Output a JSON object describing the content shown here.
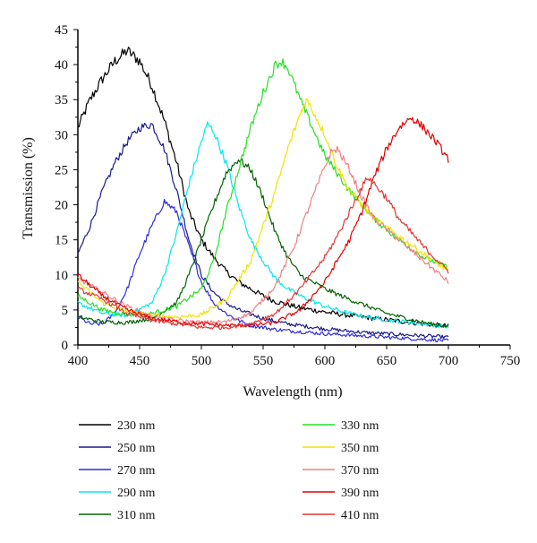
{
  "chart_data": {
    "type": "line",
    "title": "",
    "xlabel": "Wavelength (nm)",
    "ylabel": "Transmission (%)",
    "xlim": [
      400,
      750
    ],
    "ylim": [
      0,
      45
    ],
    "x_ticks": [
      "400",
      "450",
      "500",
      "550",
      "600",
      "650",
      "700",
      "750"
    ],
    "y_ticks": [
      "0",
      "5",
      "10",
      "15",
      "20",
      "25",
      "30",
      "35",
      "40",
      "45"
    ],
    "grid": false,
    "legend_position": "bottom",
    "series": [
      {
        "name": "230 nm",
        "color": "#000000",
        "noise": 0.6,
        "points": [
          [
            400,
            31
          ],
          [
            410,
            35
          ],
          [
            420,
            38
          ],
          [
            430,
            40.5
          ],
          [
            440,
            42
          ],
          [
            450,
            40.5
          ],
          [
            460,
            37
          ],
          [
            470,
            32
          ],
          [
            480,
            26
          ],
          [
            490,
            19
          ],
          [
            500,
            15
          ],
          [
            510,
            12.5
          ],
          [
            520,
            10.5
          ],
          [
            530,
            9
          ],
          [
            540,
            8
          ],
          [
            550,
            7
          ],
          [
            560,
            6.2
          ],
          [
            580,
            5.3
          ],
          [
            600,
            4.7
          ],
          [
            620,
            4.2
          ],
          [
            640,
            3.8
          ],
          [
            660,
            3.4
          ],
          [
            680,
            3.0
          ],
          [
            700,
            2.7
          ]
        ]
      },
      {
        "name": "250 nm",
        "color": "#1a1a8c",
        "noise": 0.5,
        "points": [
          [
            400,
            13
          ],
          [
            410,
            17
          ],
          [
            420,
            22
          ],
          [
            430,
            26
          ],
          [
            440,
            29
          ],
          [
            450,
            31
          ],
          [
            460,
            31.5
          ],
          [
            470,
            28
          ],
          [
            480,
            22
          ],
          [
            490,
            15
          ],
          [
            500,
            10
          ],
          [
            510,
            7.5
          ],
          [
            520,
            6
          ],
          [
            530,
            5
          ],
          [
            540,
            4.4
          ],
          [
            550,
            3.8
          ],
          [
            570,
            3
          ],
          [
            600,
            2.3
          ],
          [
            630,
            1.8
          ],
          [
            660,
            1.5
          ],
          [
            700,
            1.1
          ]
        ]
      },
      {
        "name": "270 nm",
        "color": "#2c2ce0",
        "noise": 0.5,
        "points": [
          [
            400,
            4
          ],
          [
            410,
            3
          ],
          [
            420,
            3
          ],
          [
            430,
            4.5
          ],
          [
            440,
            8
          ],
          [
            450,
            13
          ],
          [
            460,
            17
          ],
          [
            470,
            20.5
          ],
          [
            480,
            19
          ],
          [
            490,
            14
          ],
          [
            500,
            9
          ],
          [
            510,
            6
          ],
          [
            520,
            4.5
          ],
          [
            530,
            3.5
          ],
          [
            540,
            2.8
          ],
          [
            560,
            2.2
          ],
          [
            600,
            1.6
          ],
          [
            650,
            1.1
          ],
          [
            700,
            0.6
          ]
        ]
      },
      {
        "name": "290 nm",
        "color": "#00e8f0",
        "noise": 0.5,
        "points": [
          [
            400,
            6
          ],
          [
            420,
            4.5
          ],
          [
            440,
            4.2
          ],
          [
            460,
            6
          ],
          [
            470,
            10
          ],
          [
            480,
            16
          ],
          [
            490,
            23
          ],
          [
            500,
            29
          ],
          [
            505,
            31.5
          ],
          [
            510,
            30.5
          ],
          [
            520,
            26
          ],
          [
            530,
            20
          ],
          [
            540,
            15
          ],
          [
            550,
            12
          ],
          [
            560,
            9.5
          ],
          [
            570,
            8
          ],
          [
            580,
            7
          ],
          [
            600,
            5.5
          ],
          [
            620,
            4.5
          ],
          [
            640,
            3.8
          ],
          [
            670,
            3.2
          ],
          [
            700,
            2.6
          ]
        ]
      },
      {
        "name": "310 nm",
        "color": "#006400",
        "noise": 0.5,
        "points": [
          [
            400,
            4
          ],
          [
            420,
            3.3
          ],
          [
            440,
            3.2
          ],
          [
            460,
            3.8
          ],
          [
            480,
            6
          ],
          [
            490,
            10
          ],
          [
            500,
            15
          ],
          [
            510,
            20
          ],
          [
            520,
            24.5
          ],
          [
            530,
            26.5
          ],
          [
            540,
            25
          ],
          [
            550,
            21
          ],
          [
            560,
            16
          ],
          [
            570,
            12.5
          ],
          [
            580,
            10
          ],
          [
            600,
            8
          ],
          [
            620,
            6.5
          ],
          [
            650,
            4.5
          ],
          [
            680,
            3.2
          ],
          [
            700,
            2.6
          ]
        ]
      },
      {
        "name": "330 nm",
        "color": "#22e022",
        "noise": 0.5,
        "points": [
          [
            400,
            7
          ],
          [
            420,
            5
          ],
          [
            440,
            4.3
          ],
          [
            460,
            4.5
          ],
          [
            480,
            5.5
          ],
          [
            500,
            8
          ],
          [
            510,
            12
          ],
          [
            520,
            19
          ],
          [
            530,
            25
          ],
          [
            540,
            31
          ],
          [
            550,
            36
          ],
          [
            560,
            40
          ],
          [
            565,
            40.5
          ],
          [
            570,
            39.5
          ],
          [
            580,
            35
          ],
          [
            590,
            31
          ],
          [
            600,
            27
          ],
          [
            620,
            22
          ],
          [
            640,
            18
          ],
          [
            660,
            15
          ],
          [
            680,
            12.5
          ],
          [
            700,
            11
          ]
        ]
      },
      {
        "name": "350 nm",
        "color": "#f5e100",
        "noise": 0.5,
        "points": [
          [
            400,
            9
          ],
          [
            420,
            6
          ],
          [
            440,
            4.8
          ],
          [
            460,
            4.2
          ],
          [
            480,
            4
          ],
          [
            500,
            4.3
          ],
          [
            520,
            6.5
          ],
          [
            540,
            12
          ],
          [
            560,
            22
          ],
          [
            570,
            28
          ],
          [
            580,
            33
          ],
          [
            585,
            35
          ],
          [
            590,
            33.5
          ],
          [
            600,
            30
          ],
          [
            610,
            25.5
          ],
          [
            620,
            22
          ],
          [
            640,
            18
          ],
          [
            660,
            15.5
          ],
          [
            680,
            13
          ],
          [
            700,
            10.5
          ]
        ]
      },
      {
        "name": "370 nm",
        "color": "#f08080",
        "noise": 0.5,
        "points": [
          [
            400,
            9.5
          ],
          [
            420,
            7.5
          ],
          [
            440,
            5.5
          ],
          [
            460,
            4
          ],
          [
            480,
            3.5
          ],
          [
            500,
            3.2
          ],
          [
            520,
            3.3
          ],
          [
            540,
            4.5
          ],
          [
            560,
            8.5
          ],
          [
            575,
            14
          ],
          [
            590,
            21
          ],
          [
            600,
            25.5
          ],
          [
            605,
            27.5
          ],
          [
            610,
            28
          ],
          [
            620,
            25
          ],
          [
            630,
            21
          ],
          [
            640,
            18
          ],
          [
            660,
            15
          ],
          [
            680,
            12
          ],
          [
            700,
            9
          ]
        ]
      },
      {
        "name": "390 nm",
        "color": "#e00000",
        "noise": 0.5,
        "points": [
          [
            400,
            10
          ],
          [
            420,
            7
          ],
          [
            440,
            5
          ],
          [
            460,
            3.8
          ],
          [
            480,
            3.3
          ],
          [
            500,
            3
          ],
          [
            520,
            2.8
          ],
          [
            540,
            2.8
          ],
          [
            560,
            3.2
          ],
          [
            580,
            5
          ],
          [
            600,
            9
          ],
          [
            610,
            12
          ],
          [
            620,
            15
          ],
          [
            630,
            19
          ],
          [
            640,
            24
          ],
          [
            650,
            28
          ],
          [
            660,
            31
          ],
          [
            670,
            32.5
          ],
          [
            680,
            31
          ],
          [
            690,
            29
          ],
          [
            700,
            26.5
          ]
        ]
      },
      {
        "name": "410 nm",
        "color": "#e03535",
        "noise": 0.5,
        "points": [
          [
            400,
            8
          ],
          [
            420,
            6.5
          ],
          [
            440,
            4.5
          ],
          [
            460,
            3.5
          ],
          [
            480,
            3
          ],
          [
            500,
            2.5
          ],
          [
            520,
            2.5
          ],
          [
            540,
            3
          ],
          [
            560,
            4.5
          ],
          [
            580,
            8
          ],
          [
            600,
            12.5
          ],
          [
            610,
            15.5
          ],
          [
            620,
            19
          ],
          [
            630,
            22.5
          ],
          [
            635,
            24
          ],
          [
            640,
            23
          ],
          [
            650,
            21
          ],
          [
            660,
            18
          ],
          [
            680,
            14
          ],
          [
            700,
            10.5
          ]
        ]
      }
    ]
  }
}
